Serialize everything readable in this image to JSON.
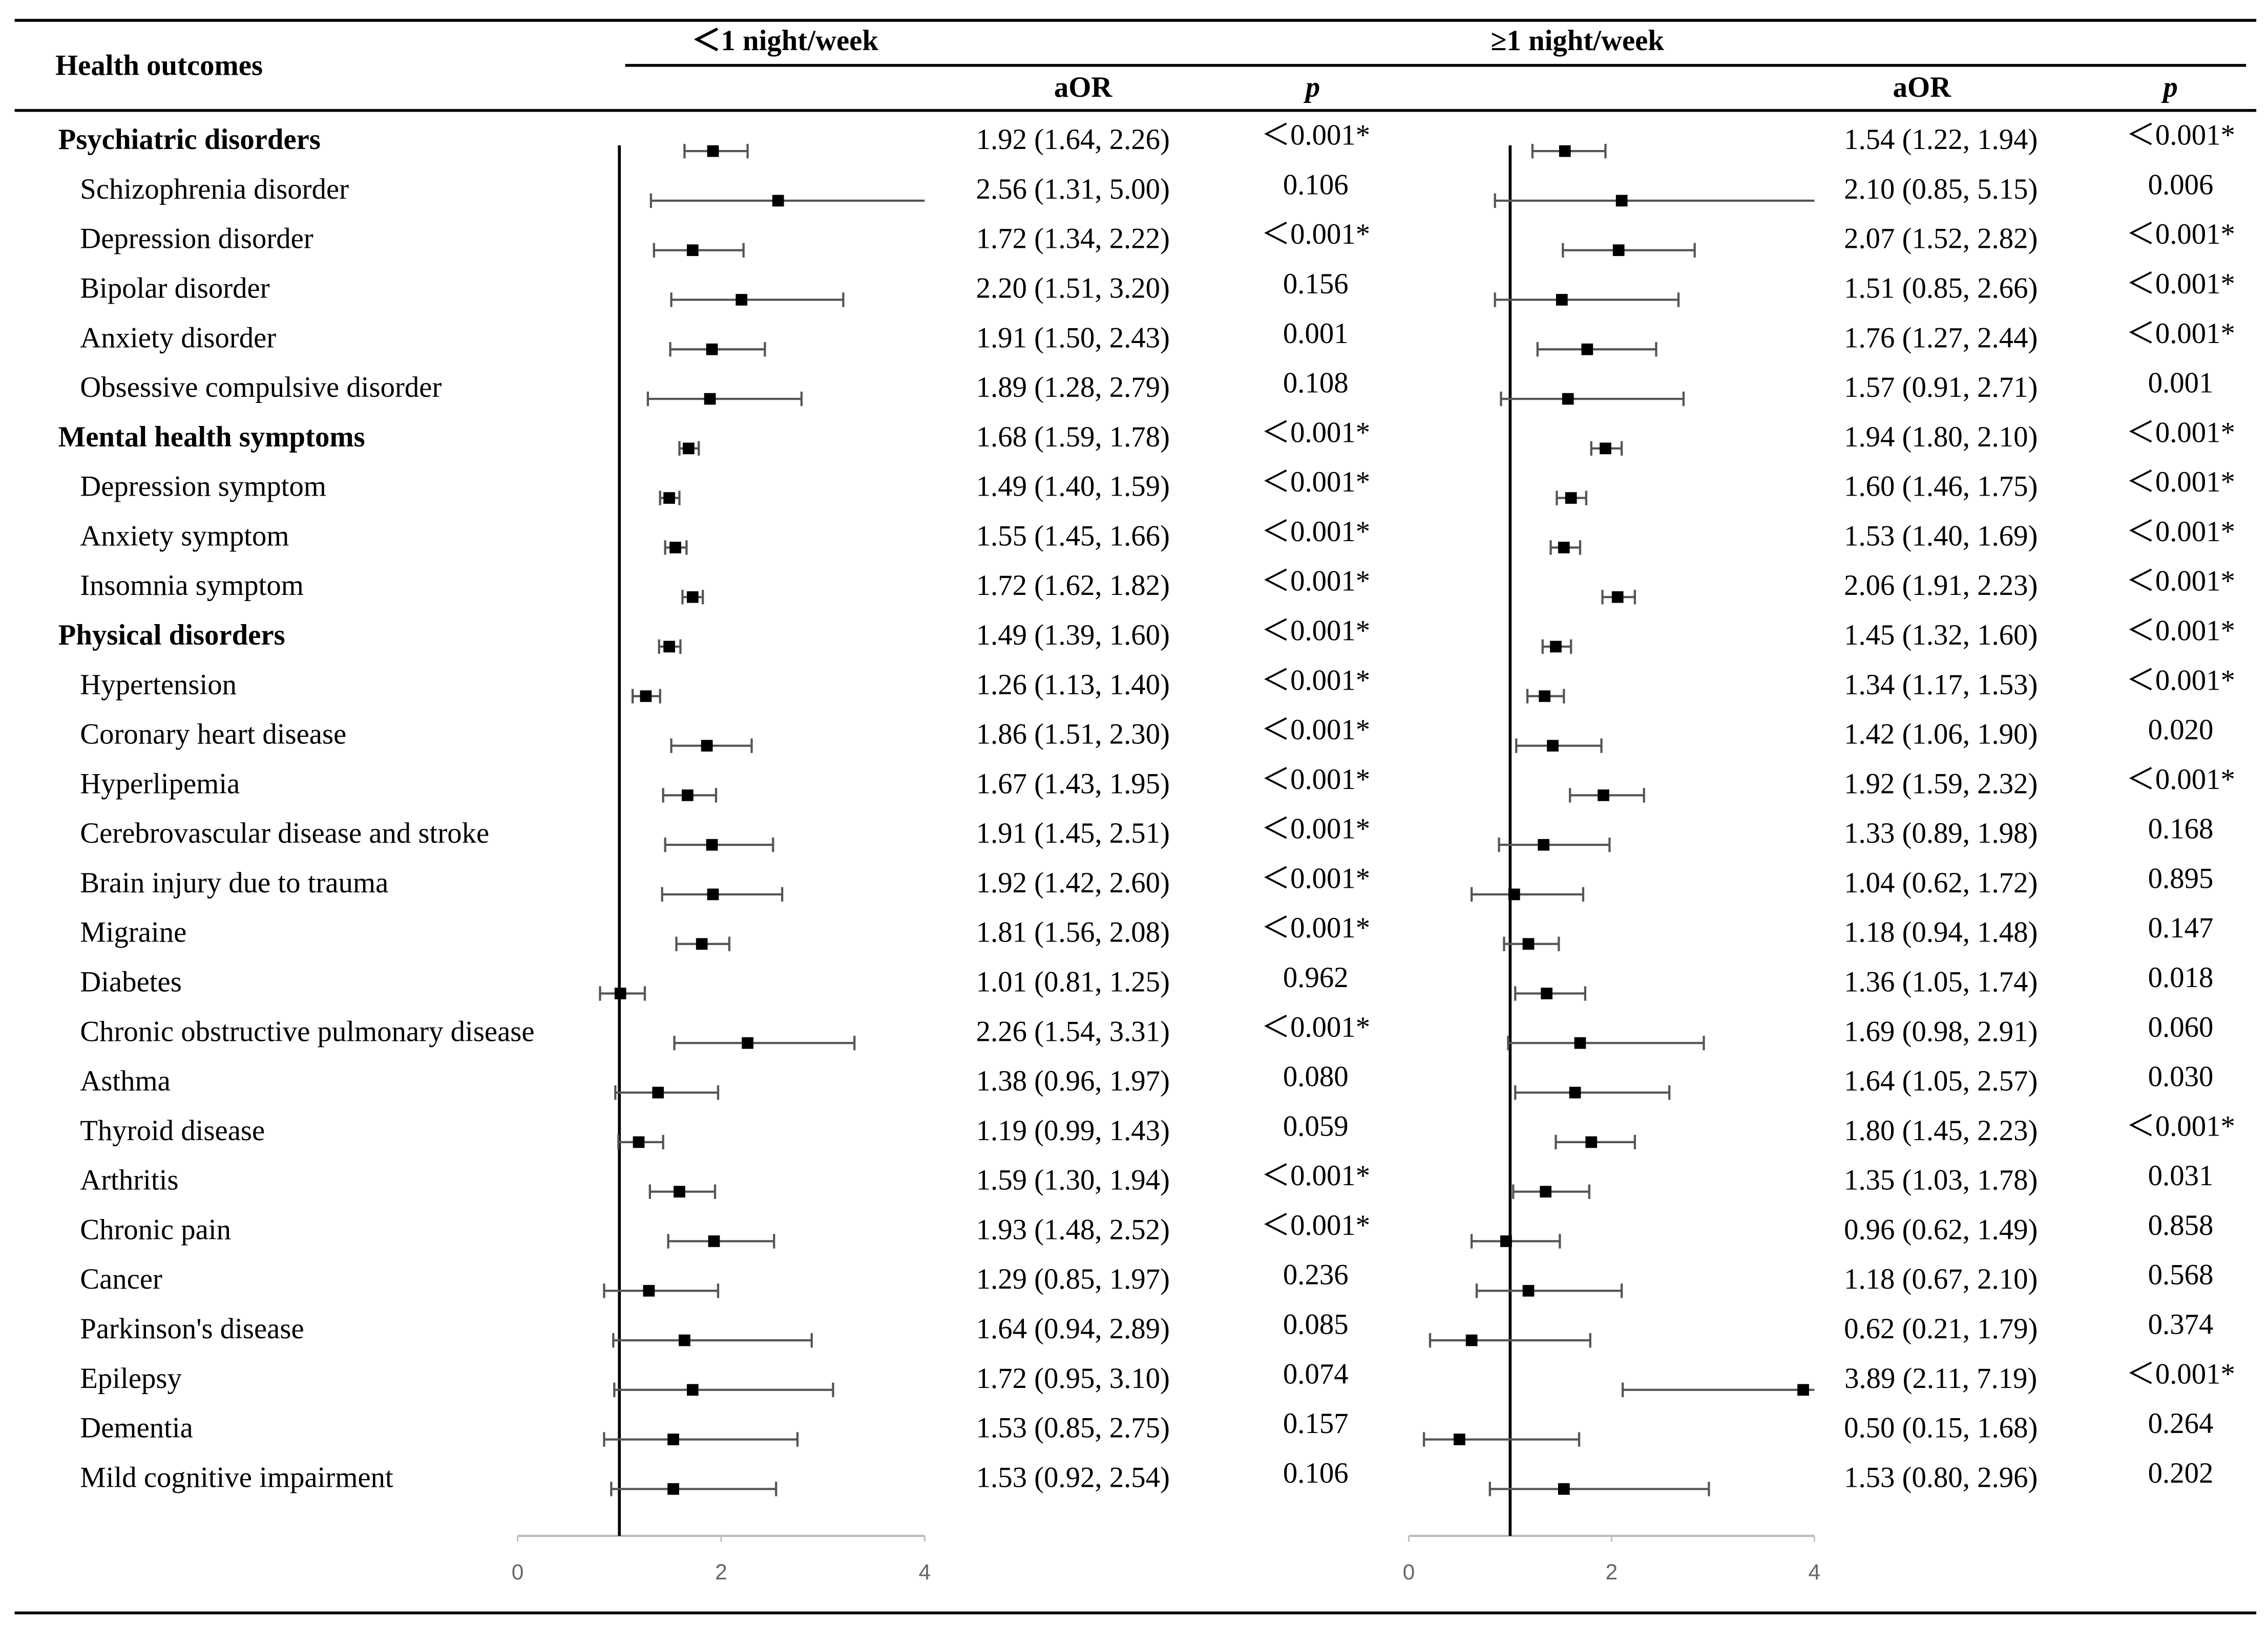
{
  "chart_data": {
    "type": "forest",
    "row_header": "Health outcomes",
    "categories": [
      "Psychiatric disorders",
      "Schizophrenia disorder",
      "Depression disorder",
      "Bipolar disorder",
      "Anxiety disorder",
      "Obsessive compulsive disorder",
      "Mental health symptoms",
      "Depression symptom",
      "Anxiety symptom",
      "Insomnia  symptom",
      "Physical disorders",
      "Hypertension",
      "Coronary heart disease",
      "Hyperlipemia",
      "Cerebrovascular disease and stroke",
      "Brain injury due to trauma",
      "Migraine",
      "Diabetes",
      "Chronic obstructive pulmonary disease",
      "Asthma",
      "Thyroid disease",
      "Arthritis",
      "Chronic pain",
      "Cancer",
      "Parkinson's disease",
      "Epilepsy",
      "Dementia",
      "Mild cognitive impairment"
    ],
    "section_rows": [
      0,
      6,
      10
    ],
    "xlim": [
      0,
      4
    ],
    "xticks": [
      0,
      2,
      4
    ],
    "reference": 1,
    "color": "#000000",
    "groups": [
      {
        "name": "＜1 night/week",
        "aor_header": "aOR",
        "p_header": "p",
        "values": [
          1.92,
          2.56,
          1.72,
          2.2,
          1.91,
          1.89,
          1.68,
          1.49,
          1.55,
          1.72,
          1.49,
          1.26,
          1.86,
          1.67,
          1.91,
          1.92,
          1.81,
          1.01,
          2.26,
          1.38,
          1.19,
          1.59,
          1.93,
          1.29,
          1.64,
          1.72,
          1.53,
          1.53
        ],
        "lower": [
          1.64,
          1.31,
          1.34,
          1.51,
          1.5,
          1.28,
          1.59,
          1.4,
          1.45,
          1.62,
          1.39,
          1.13,
          1.51,
          1.43,
          1.45,
          1.42,
          1.56,
          0.81,
          1.54,
          0.96,
          0.99,
          1.3,
          1.48,
          0.85,
          0.94,
          0.95,
          0.85,
          0.92
        ],
        "upper": [
          2.26,
          5.0,
          2.22,
          3.2,
          2.43,
          2.79,
          1.78,
          1.59,
          1.66,
          1.82,
          1.6,
          1.4,
          2.3,
          1.95,
          2.51,
          2.6,
          2.08,
          1.25,
          3.31,
          1.97,
          1.43,
          1.94,
          2.52,
          1.97,
          2.89,
          3.1,
          2.75,
          2.54
        ],
        "value_labels": [
          "1.92 (1.64, 2.26)",
          "2.56 (1.31, 5.00)",
          "1.72 (1.34, 2.22)",
          "2.20 (1.51, 3.20)",
          "1.91 (1.50, 2.43)",
          "1.89 (1.28, 2.79)",
          "1.68 (1.59, 1.78)",
          "1.49 (1.40, 1.59)",
          "1.55 (1.45, 1.66)",
          "1.72 (1.62, 1.82)",
          "1.49 (1.39, 1.60)",
          "1.26 (1.13, 1.40)",
          "1.86 (1.51, 2.30)",
          "1.67 (1.43, 1.95)",
          "1.91 (1.45, 2.51)",
          "1.92 (1.42, 2.60)",
          "1.81 (1.56, 2.08)",
          "1.01 (0.81, 1.25)",
          "2.26 (1.54, 3.31)",
          "1.38 (0.96, 1.97)",
          "1.19 (0.99, 1.43)",
          "1.59 (1.30, 1.94)",
          "1.93 (1.48, 2.52)",
          "1.29 (0.85, 1.97)",
          "1.64 (0.94, 2.89)",
          "1.72 (0.95, 3.10)",
          "1.53 (0.85, 2.75)",
          "1.53 (0.92, 2.54)"
        ],
        "p_labels": [
          "＜0.001*",
          "0.106",
          "＜0.001*",
          "0.156",
          "0.001",
          "0.108",
          "＜0.001*",
          "＜0.001*",
          "＜0.001*",
          "＜0.001*",
          "＜0.001*",
          "＜0.001*",
          "＜0.001*",
          "＜0.001*",
          "＜0.001*",
          "＜0.001*",
          "＜0.001*",
          "0.962",
          "＜0.001*",
          "0.080",
          "0.059",
          "＜0.001*",
          "＜0.001*",
          "0.236",
          "0.085",
          "0.074",
          "0.157",
          "0.106"
        ]
      },
      {
        "name": "≥1 night/week",
        "aor_header": "aOR",
        "p_header": "p",
        "values": [
          1.54,
          2.1,
          2.07,
          1.51,
          1.76,
          1.57,
          1.94,
          1.6,
          1.53,
          2.06,
          1.45,
          1.34,
          1.42,
          1.92,
          1.33,
          1.04,
          1.18,
          1.36,
          1.69,
          1.64,
          1.8,
          1.35,
          0.96,
          1.18,
          0.62,
          3.89,
          0.5,
          1.53
        ],
        "lower": [
          1.22,
          0.85,
          1.52,
          0.85,
          1.27,
          0.91,
          1.8,
          1.46,
          1.4,
          1.91,
          1.32,
          1.17,
          1.06,
          1.59,
          0.89,
          0.62,
          0.94,
          1.05,
          0.98,
          1.05,
          1.45,
          1.03,
          0.62,
          0.67,
          0.21,
          2.11,
          0.15,
          0.8
        ],
        "upper": [
          1.94,
          5.15,
          2.82,
          2.66,
          2.44,
          2.71,
          2.1,
          1.75,
          1.69,
          2.23,
          1.6,
          1.53,
          1.9,
          2.32,
          1.98,
          1.72,
          1.48,
          1.74,
          2.91,
          2.57,
          2.23,
          1.78,
          1.49,
          2.1,
          1.79,
          7.19,
          1.68,
          2.96
        ],
        "value_labels": [
          "1.54 (1.22, 1.94)",
          "2.10 (0.85, 5.15)",
          "2.07 (1.52, 2.82)",
          "1.51 (0.85, 2.66)",
          "1.76 (1.27, 2.44)",
          "1.57 (0.91, 2.71)",
          "1.94 (1.80, 2.10)",
          "1.60 (1.46, 1.75)",
          "1.53 (1.40, 1.69)",
          "2.06 (1.91, 2.23)",
          "1.45 (1.32, 1.60)",
          "1.34 (1.17, 1.53)",
          "1.42 (1.06, 1.90)",
          "1.92 (1.59, 2.32)",
          "1.33 (0.89, 1.98)",
          "1.04 (0.62, 1.72)",
          "1.18 (0.94, 1.48)",
          "1.36 (1.05, 1.74)",
          "1.69 (0.98, 2.91)",
          "1.64 (1.05, 2.57)",
          "1.80 (1.45, 2.23)",
          "1.35 (1.03, 1.78)",
          "0.96 (0.62, 1.49)",
          "1.18 (0.67, 2.10)",
          "0.62 (0.21, 1.79)",
          "3.89 (2.11, 7.19)",
          "0.50 (0.15, 1.68)",
          "1.53 (0.80, 2.96)"
        ],
        "p_labels": [
          "＜0.001*",
          "0.006",
          "＜0.001*",
          "＜0.001*",
          "＜0.001*",
          "0.001",
          "＜0.001*",
          "＜0.001*",
          "＜0.001*",
          "＜0.001*",
          "＜0.001*",
          "＜0.001*",
          "0.020",
          "＜0.001*",
          "0.168",
          "0.895",
          "0.147",
          "0.018",
          "0.060",
          "0.030",
          "＜0.001*",
          "0.031",
          "0.858",
          "0.568",
          "0.374",
          "＜0.001*",
          "0.264",
          "0.202"
        ]
      }
    ]
  }
}
